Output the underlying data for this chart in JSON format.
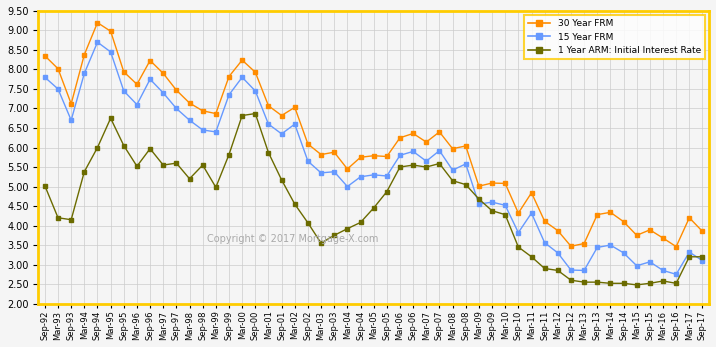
{
  "title": "",
  "ylabel": "",
  "xlabel": "",
  "ylim": [
    2.0,
    9.5
  ],
  "yticks": [
    2.0,
    2.5,
    3.0,
    3.5,
    4.0,
    4.5,
    5.0,
    5.5,
    6.0,
    6.5,
    7.0,
    7.5,
    8.0,
    8.5,
    9.0,
    9.5
  ],
  "bg_color": "#f5f5f5",
  "border_color": "#ffcc00",
  "grid_color": "#cccccc",
  "legend_border_color": "#ffcc00",
  "color_30yr": "#FF8C00",
  "color_15yr": "#6699FF",
  "color_arm": "#6B6B00",
  "label_30yr": "30 Year FRM",
  "label_15yr": "15 Year FRM",
  "label_arm": "1 Year ARM: Initial Interest Rate",
  "copyright_text": "Copyright © 2017 Mortgage-X.com",
  "xtick_labels": [
    "Sep-92",
    "Mar-93",
    "Sep-93",
    "Mar-94",
    "Sep-94",
    "Mar-95",
    "Sep-95",
    "Mar-96",
    "Sep-96",
    "Mar-97",
    "Sep-97",
    "Mar-98",
    "Sep-98",
    "Mar-99",
    "Sep-99",
    "Mar-00",
    "Sep-00",
    "Mar-01",
    "Sep-01",
    "Mar-02",
    "Sep-02",
    "Mar-03",
    "Sep-03",
    "Mar-04",
    "Sep-04",
    "Mar-05",
    "Sep-05",
    "Mar-06",
    "Sep-06",
    "Mar-07",
    "Sep-07",
    "Mar-08",
    "Sep-08",
    "Mar-09",
    "Sep-09",
    "Mar-10",
    "Sep-10",
    "Mar-11",
    "Sep-11",
    "Mar-12",
    "Sep-12",
    "Mar-13",
    "Sep-13",
    "Mar-14",
    "Sep-14",
    "Mar-15",
    "Sep-15",
    "Mar-16",
    "Sep-16",
    "Mar-17",
    "Sep-17"
  ],
  "frm30": [
    8.35,
    8.02,
    7.12,
    8.38,
    9.2,
    8.98,
    7.94,
    7.62,
    8.23,
    7.9,
    7.47,
    7.14,
    6.94,
    6.87,
    7.82,
    8.24,
    7.93,
    7.07,
    6.82,
    7.03,
    6.09,
    5.82,
    5.88,
    5.45,
    5.75,
    5.79,
    5.77,
    6.25,
    6.36,
    6.14,
    6.4,
    5.97,
    6.04,
    5.01,
    5.09,
    5.08,
    4.32,
    4.84,
    4.11,
    3.87,
    3.47,
    3.54,
    4.28,
    4.34,
    4.1,
    3.75,
    3.89,
    3.68,
    3.46,
    4.2,
    3.85
  ],
  "frm15": [
    7.8,
    7.5,
    6.7,
    7.9,
    8.7,
    8.45,
    7.45,
    7.1,
    7.75,
    7.4,
    7.0,
    6.7,
    6.45,
    6.4,
    7.35,
    7.8,
    7.45,
    6.6,
    6.35,
    6.6,
    5.65,
    5.35,
    5.38,
    5.0,
    5.25,
    5.3,
    5.27,
    5.8,
    5.9,
    5.65,
    5.92,
    5.42,
    5.58,
    4.55,
    4.6,
    4.52,
    3.82,
    4.32,
    3.56,
    3.3,
    2.86,
    2.85,
    3.44,
    3.5,
    3.3,
    2.97,
    3.07,
    2.85,
    2.75,
    3.32,
    3.1
  ],
  "arm1": [
    5.02,
    4.2,
    4.15,
    5.38,
    6.0,
    6.75,
    6.05,
    5.52,
    5.97,
    5.55,
    5.6,
    5.2,
    5.55,
    4.98,
    5.82,
    6.82,
    6.87,
    5.87,
    5.17,
    4.55,
    4.07,
    3.55,
    3.75,
    3.92,
    4.08,
    4.45,
    4.87,
    5.5,
    5.55,
    5.5,
    5.59,
    5.15,
    5.05,
    4.68,
    4.38,
    4.28,
    3.45,
    3.2,
    2.9,
    2.85,
    2.6,
    2.55,
    2.55,
    2.52,
    2.52,
    2.48,
    2.52,
    2.58,
    2.52,
    3.2,
    3.2
  ]
}
